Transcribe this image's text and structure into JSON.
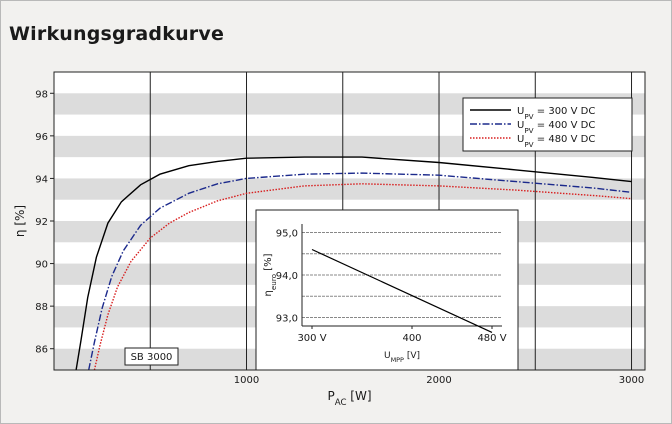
{
  "title": "Wirkungsgradkurve",
  "chart_data": {
    "type": "line",
    "ylabel": "η [%]",
    "xlabel": {
      "main": "P",
      "sub": "AC",
      "unit": " [W]"
    },
    "xlim": [
      0,
      3070
    ],
    "ylim": [
      85,
      99
    ],
    "xticks": [
      {
        "value": 1000,
        "label": "1000"
      },
      {
        "value": 2000,
        "label": "2000"
      },
      {
        "value": 3000,
        "label": "3000"
      }
    ],
    "xgrid": [
      500,
      1000,
      1500,
      2000,
      2500,
      3000
    ],
    "yticks": [
      {
        "value": 86,
        "label": "86"
      },
      {
        "value": 88,
        "label": "88"
      },
      {
        "value": 90,
        "label": "90"
      },
      {
        "value": 92,
        "label": "92"
      },
      {
        "value": 94,
        "label": "94"
      },
      {
        "value": 96,
        "label": "96"
      },
      {
        "value": 98,
        "label": "98"
      }
    ],
    "bands": [
      [
        85,
        86
      ],
      [
        87,
        88
      ],
      [
        89,
        90
      ],
      [
        91,
        92
      ],
      [
        93,
        94
      ],
      [
        95,
        96
      ],
      [
        97,
        98
      ]
    ],
    "legend_position": "top-right",
    "series": [
      {
        "name": {
          "main": "U",
          "sub": "PV",
          "rest": " = 300 V DC"
        },
        "color": "#000000",
        "dash": "",
        "x": [
          115,
          140,
          175,
          220,
          280,
          350,
          450,
          550,
          700,
          850,
          1000,
          1300,
          1600,
          2000,
          2400,
          2800,
          3000
        ],
        "y": [
          85.0,
          86.4,
          88.4,
          90.3,
          91.9,
          92.9,
          93.7,
          94.2,
          94.6,
          94.8,
          94.95,
          95.0,
          95.0,
          94.75,
          94.4,
          94.05,
          93.85
        ]
      },
      {
        "name": {
          "main": "U",
          "sub": "PV",
          "rest": " = 400 V DC"
        },
        "color": "#1c2a8c",
        "dash": "7,2,1.5,2",
        "x": [
          180,
          210,
          250,
          300,
          360,
          450,
          550,
          700,
          850,
          1000,
          1300,
          1600,
          2000,
          2400,
          2800,
          3000
        ],
        "y": [
          85.0,
          86.3,
          87.9,
          89.4,
          90.6,
          91.8,
          92.6,
          93.3,
          93.75,
          94.0,
          94.2,
          94.25,
          94.15,
          93.85,
          93.55,
          93.35
        ]
      },
      {
        "name": {
          "main": "U",
          "sub": "PV",
          "rest": " = 480 V DC"
        },
        "color": "#d81e1e",
        "dash": "1.5,1.5",
        "x": [
          210,
          240,
          280,
          330,
          400,
          500,
          600,
          700,
          850,
          1000,
          1300,
          1600,
          2000,
          2400,
          2800,
          3000
        ],
        "y": [
          85.0,
          86.2,
          87.6,
          88.9,
          90.1,
          91.2,
          91.9,
          92.4,
          92.95,
          93.3,
          93.65,
          93.75,
          93.65,
          93.45,
          93.2,
          93.05
        ]
      }
    ],
    "label_box": "SB 3000",
    "inset": {
      "type": "line",
      "ylabel": {
        "main": "η",
        "sub": "euro",
        "rest": " [%]"
      },
      "xlabel": {
        "main": "U",
        "sub": "MPP",
        "rest": " [V]"
      },
      "xlim": [
        290,
        490
      ],
      "ylim": [
        92.8,
        95.2
      ],
      "xticks": [
        {
          "value": 300,
          "label": "300 V"
        },
        {
          "value": 400,
          "label": "400"
        },
        {
          "value": 480,
          "label": "480 V"
        }
      ],
      "yticks": [
        {
          "value": 93.0,
          "label": "93,0"
        },
        {
          "value": 94.0,
          "label": "94,0"
        },
        {
          "value": 95.0,
          "label": "95,0"
        }
      ],
      "ygrid": [
        93.0,
        93.5,
        94.0,
        94.5,
        95.0
      ],
      "series": [
        {
          "color": "#000000",
          "x": [
            300,
            480
          ],
          "y": [
            94.6,
            92.65
          ]
        }
      ]
    }
  }
}
